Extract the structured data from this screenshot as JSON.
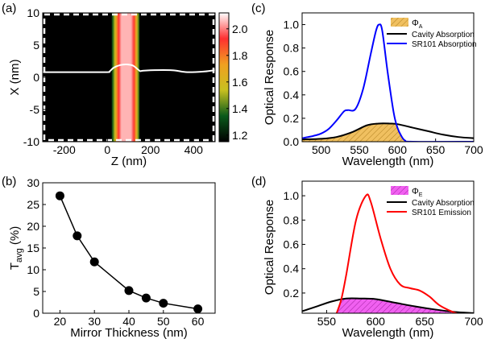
{
  "panel_labels": {
    "a": "(a)",
    "b": "(b)",
    "c": "(c)",
    "d": "(d)"
  },
  "chart_data": [
    {
      "panel": "a",
      "type": "heatmap",
      "xlabel": "Z (nm)",
      "ylabel": "X (nm)",
      "xlim": [
        -300,
        500
      ],
      "ylim": [
        -10,
        10
      ],
      "xticks": [
        -200,
        0,
        200,
        400
      ],
      "yticks": [
        -10,
        -5,
        0,
        5,
        10
      ],
      "colorbar": {
        "range": [
          1.15,
          2.12
        ],
        "ticks": [
          "1.2",
          "1.4",
          "1.6",
          "1.8",
          "2.0"
        ],
        "colors": [
          "#000000",
          "#0a5a1a",
          "#c8c020",
          "#f0a020",
          "#ff3030",
          "#ffffff"
        ]
      },
      "bands": [
        {
          "z_from": 20,
          "z_to": 150,
          "value_profile": [
            [
              20,
              1.25
            ],
            [
              35,
              1.55
            ],
            [
              50,
              1.9
            ],
            [
              65,
              2.05
            ],
            [
              110,
              2.05
            ],
            [
              125,
              1.9
            ],
            [
              140,
              1.55
            ],
            [
              150,
              1.25
            ]
          ]
        }
      ],
      "profile_line": {
        "color": "#ffffff",
        "z": [
          -300,
          -100,
          0,
          10,
          30,
          60,
          90,
          120,
          150,
          160,
          200,
          300,
          370,
          450,
          500
        ],
        "x": [
          0.8,
          0.8,
          0.8,
          0.9,
          1.5,
          1.9,
          2.0,
          1.8,
          1.0,
          1.0,
          1.1,
          1.1,
          0.8,
          0.9,
          1.1
        ]
      }
    },
    {
      "panel": "b",
      "type": "line",
      "xlabel": "Mirror Thickness (nm)",
      "ylabel": "T",
      "ylabel_sub": "avg",
      "ylabel_unit": " (%)",
      "xlim": [
        15,
        65
      ],
      "ylim": [
        0,
        30
      ],
      "xticks": [
        20,
        30,
        40,
        50,
        60
      ],
      "yticks": [
        0,
        5,
        10,
        15,
        20,
        25,
        30
      ],
      "x": [
        20,
        25,
        30,
        40,
        45,
        50,
        60
      ],
      "y": [
        27,
        17.8,
        11.8,
        5.2,
        3.5,
        2.3,
        1.0
      ]
    },
    {
      "panel": "c",
      "type": "line",
      "xlabel": "Wavelength (nm)",
      "ylabel": "Optical Response",
      "xlim": [
        475,
        700
      ],
      "ylim": [
        0,
        1.1
      ],
      "xticks": [
        500,
        550,
        600,
        650,
        700
      ],
      "yticks": [
        "0.0",
        "0.2",
        "0.4",
        "0.6",
        "0.8",
        "1.0"
      ],
      "fill": {
        "name": "Φ",
        "sub": "A",
        "color": "#f0c060",
        "hatch": "#b08020"
      },
      "series": [
        {
          "name": "Cavity Absorption",
          "color": "#000000",
          "x": [
            475,
            500,
            520,
            540,
            560,
            575,
            590,
            600,
            620,
            640,
            660,
            680,
            700
          ],
          "y": [
            0.02,
            0.025,
            0.04,
            0.08,
            0.14,
            0.155,
            0.155,
            0.15,
            0.12,
            0.09,
            0.06,
            0.04,
            0.03
          ]
        },
        {
          "name": "SR101 Absorption",
          "color": "#0000ff",
          "x": [
            475,
            490,
            500,
            510,
            520,
            530,
            535,
            545,
            555,
            565,
            572,
            576,
            580,
            587,
            595,
            600,
            605,
            610,
            620,
            700
          ],
          "y": [
            0.03,
            0.05,
            0.07,
            0.11,
            0.18,
            0.26,
            0.27,
            0.28,
            0.45,
            0.75,
            0.95,
            1.0,
            0.95,
            0.6,
            0.25,
            0.12,
            0.05,
            0.01,
            0,
            0
          ]
        }
      ]
    },
    {
      "panel": "d",
      "type": "line",
      "xlabel": "Wavelength (nm)",
      "ylabel": "Optical Response",
      "xlim": [
        525,
        700
      ],
      "ylim": [
        0.034,
        1.12
      ],
      "xticks": [
        550,
        600,
        650,
        700
      ],
      "yticks": [
        "0.2",
        "0.4",
        "0.6",
        "0.8",
        "1.0"
      ],
      "fill": {
        "name": "Φ",
        "sub": "E",
        "color": "#f060f0",
        "hatch": "#a020a0"
      },
      "series": [
        {
          "name": "Cavity Absorption",
          "color": "#000000",
          "x": [
            525,
            540,
            555,
            570,
            585,
            600,
            620,
            640,
            660,
            680,
            700
          ],
          "y": [
            0.05,
            0.09,
            0.13,
            0.155,
            0.155,
            0.15,
            0.12,
            0.09,
            0.065,
            0.045,
            0.035
          ]
        },
        {
          "name": "SR101 Emission",
          "color": "#ff0000",
          "x": [
            560,
            565,
            570,
            580,
            590,
            595,
            605,
            615,
            625,
            635,
            645,
            655,
            665,
            680,
            695
          ],
          "y": [
            0.03,
            0.15,
            0.35,
            0.8,
            1.0,
            0.95,
            0.65,
            0.4,
            0.27,
            0.24,
            0.22,
            0.17,
            0.1,
            0.04,
            0.005
          ]
        }
      ]
    }
  ]
}
